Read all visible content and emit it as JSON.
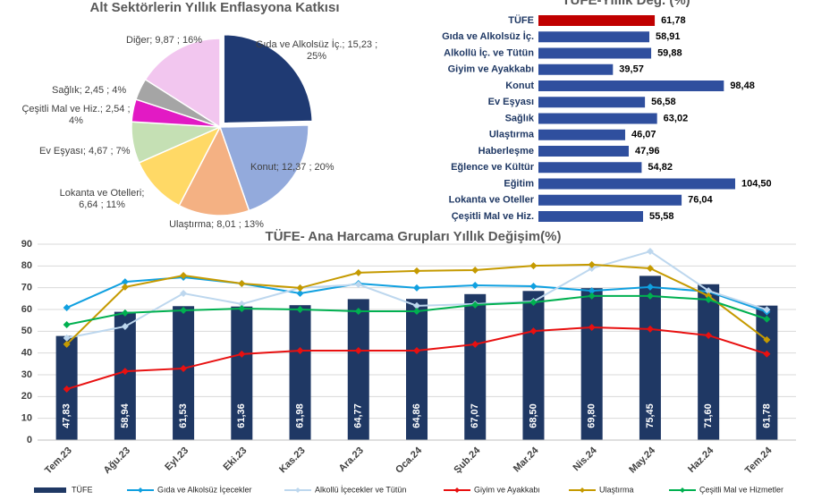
{
  "chart_data": [
    {
      "type": "pie",
      "title": "Alt Sektörlerin Yıllık Enflasyona Katkısı",
      "labels": [
        "Gıda ve Alkolsüz İç.; 15,23 ; 25%",
        "Konut; 12,37 ; 20%",
        "Ulaştırma; 8,01 ; 13%",
        "Lokanta ve Otelleri; 6,64 ; 11%",
        "Ev Eşyası; 4,67 ; 7%",
        "Çeşitli Mal ve Hiz.; 2,54 ; 4%",
        "Sağlık; 2,45 ; 4%",
        "Diğer; 9,87 ; 16%"
      ],
      "values": [
        15.23,
        12.37,
        8.01,
        6.64,
        4.67,
        2.54,
        2.45,
        9.87
      ],
      "colors": [
        "#1f3a73",
        "#93aadc",
        "#f4b183",
        "#ffd966",
        "#c5e0b4",
        "#e21ac4",
        "#a5a5a5",
        "#f2c6ef"
      ]
    },
    {
      "type": "hbar",
      "title": "TÜFE-Yıllık Değ. (%)",
      "categories": [
        "TÜFE",
        "Gıda ve Alkolsüz İç.",
        "Alkollü İç. ve Tütün",
        "Giyim ve Ayakkabı",
        "Konut",
        "Ev Eşyası",
        "Sağlık",
        "Ulaştırma",
        "Haberleşme",
        "Eğlence ve Kültür",
        "Eğitim",
        "Lokanta ve Oteller",
        "Çeşitli Mal ve Hiz."
      ],
      "values": [
        61.78,
        58.91,
        59.88,
        39.57,
        98.48,
        56.58,
        63.02,
        46.07,
        47.96,
        54.82,
        104.5,
        76.04,
        55.58
      ],
      "value_labels": [
        "61,78",
        "58,91",
        "59,88",
        "39,57",
        "98,48",
        "56,58",
        "63,02",
        "46,07",
        "47,96",
        "54,82",
        "104,50",
        "76,04",
        "55,58"
      ],
      "colors": [
        "#c00000",
        "#2f4f9e",
        "#2f4f9e",
        "#2f4f9e",
        "#2f4f9e",
        "#2f4f9e",
        "#2f4f9e",
        "#2f4f9e",
        "#2f4f9e",
        "#2f4f9e",
        "#2f4f9e",
        "#2f4f9e",
        "#2f4f9e"
      ]
    },
    {
      "type": "combo",
      "title": "TÜFE- Ana Harcama Grupları Yıllık Değişim(%)",
      "categories": [
        "Tem.23",
        "Ağu.23",
        "Eyl.23",
        "Eki.23",
        "Kas.23",
        "Ara.23",
        "Oca.24",
        "Şub.24",
        "Mar.24",
        "Nis.24",
        "May.24",
        "Haz.24",
        "Tem.24"
      ],
      "ylim": [
        0,
        90
      ],
      "yticks": [
        0,
        10,
        20,
        30,
        40,
        50,
        60,
        70,
        80,
        90
      ],
      "grid": true,
      "series": [
        {
          "name": "TÜFE",
          "type": "bar",
          "color": "#1f3864",
          "values": [
            47.83,
            58.94,
            61.53,
            61.36,
            61.98,
            64.77,
            64.86,
            67.07,
            68.5,
            69.8,
            75.45,
            71.6,
            61.78
          ],
          "value_labels": [
            "47,83",
            "58,94",
            "61,53",
            "61,36",
            "61,98",
            "64,77",
            "64,86",
            "67,07",
            "68,50",
            "69,80",
            "75,45",
            "71,60",
            "61,78"
          ]
        },
        {
          "name": "Gıda ve Alkolsüz İçecekler",
          "type": "line",
          "color": "#10a0e0",
          "values": [
            60.8,
            72.7,
            74.8,
            71.9,
            67.4,
            71.9,
            69.9,
            71.1,
            70.7,
            68.6,
            70.3,
            68.2,
            58.91
          ]
        },
        {
          "name": "Alkollü İçecekler ve Tütün",
          "type": "line",
          "color": "#bdd7ee",
          "values": [
            46.9,
            52.2,
            67.4,
            62.5,
            69.9,
            71.5,
            61.7,
            62.5,
            63.7,
            78.9,
            86.7,
            68.6,
            59.88
          ]
        },
        {
          "name": "Giyim ve Ayakkabı",
          "type": "line",
          "color": "#e81010",
          "values": [
            23.4,
            31.6,
            32.9,
            39.5,
            41.1,
            41.1,
            41.1,
            44.0,
            50.1,
            51.8,
            51.0,
            48.1,
            39.57
          ]
        },
        {
          "name": "Ulaştırma",
          "type": "line",
          "color": "#c59a00",
          "values": [
            44.0,
            70.3,
            75.6,
            71.9,
            69.9,
            76.9,
            77.7,
            78.1,
            80.1,
            80.6,
            78.9,
            66.2,
            46.07
          ]
        },
        {
          "name": "Çeşitli Mal ve Hizmetler",
          "type": "line",
          "color": "#00b050",
          "values": [
            53.0,
            58.4,
            59.6,
            60.4,
            60.0,
            59.2,
            59.2,
            62.1,
            63.3,
            66.2,
            66.2,
            64.5,
            55.58
          ]
        }
      ]
    }
  ]
}
